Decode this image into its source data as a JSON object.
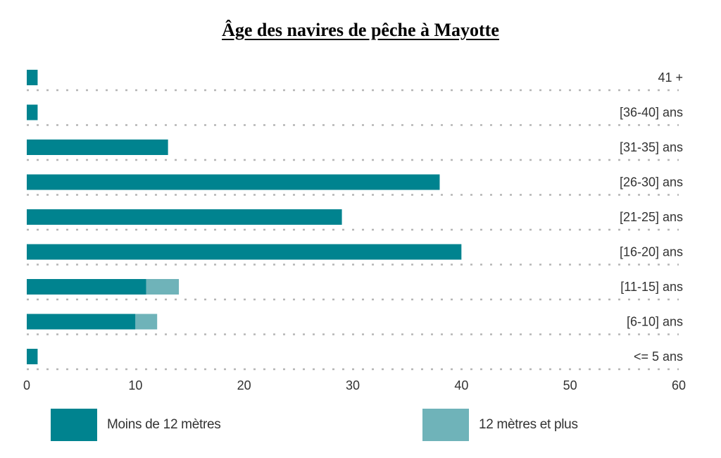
{
  "chart_data": {
    "type": "bar",
    "orientation": "horizontal",
    "stacked": true,
    "title": "Âge des navires de pêche à Mayotte",
    "categories": [
      "41 +",
      "[36-40] ans",
      "[31-35] ans",
      "[26-30] ans",
      "[21-25] ans",
      "[16-20] ans",
      "[11-15] ans",
      "[6-10] ans",
      "<= 5 ans"
    ],
    "series": [
      {
        "name": "Moins de 12 mètres",
        "color": "#00838f",
        "values": [
          1,
          1,
          13,
          38,
          29,
          40,
          11,
          10,
          1
        ]
      },
      {
        "name": "12 mètres et plus",
        "color": "#6fb3b9",
        "values": [
          0,
          0,
          0,
          0,
          0,
          0,
          3,
          2,
          0
        ]
      }
    ],
    "xlim": [
      0,
      60
    ],
    "xticks": [
      "0",
      "10",
      "20",
      "30",
      "40",
      "50",
      "60"
    ],
    "xlabel": "",
    "ylabel": "",
    "grid": "dotted horizontal guide lines",
    "category_label_position": "right",
    "legend_position": "bottom"
  }
}
